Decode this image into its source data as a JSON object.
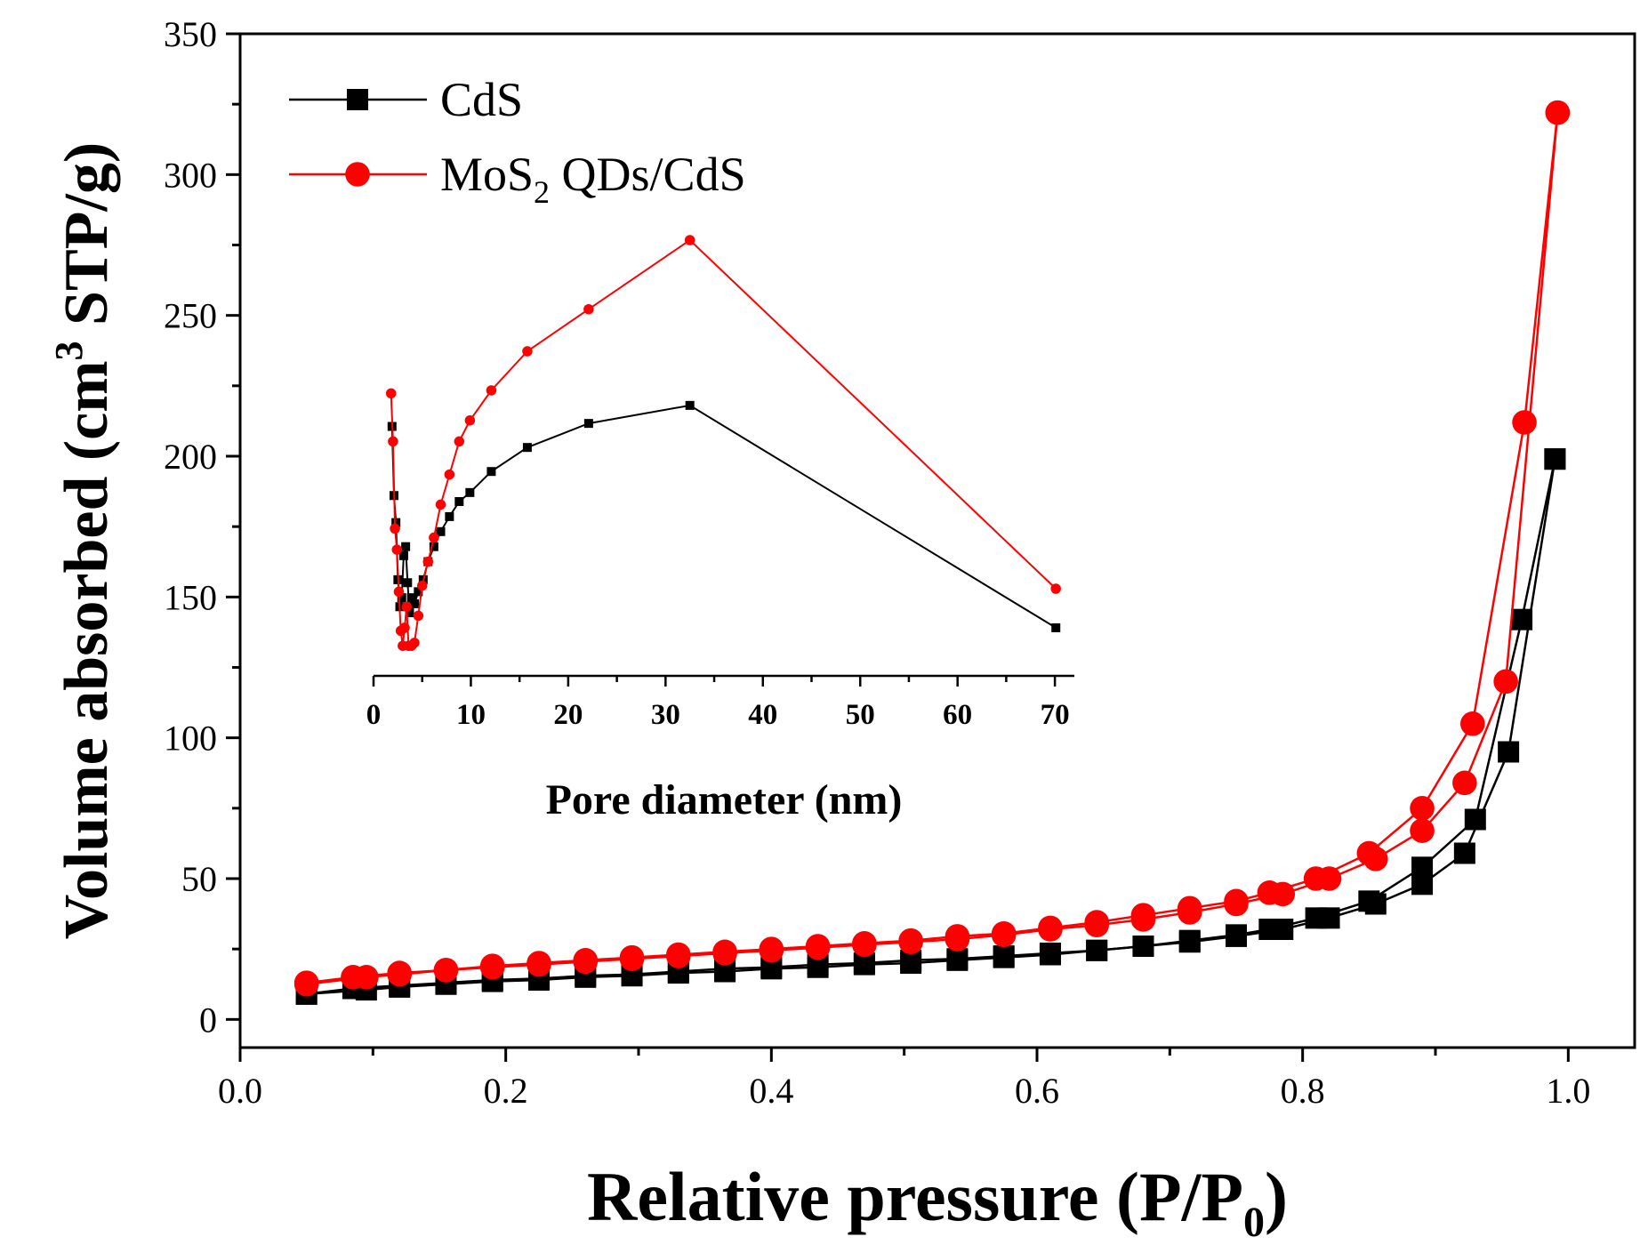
{
  "chart_data": [
    {
      "type": "scatter",
      "role": "main",
      "xlabel": "Relative pressure (P/P",
      "xlabel_subscript": "0",
      "xlabel_close": ")",
      "ylabel": "Volume absorbed (cm",
      "ylabel_superscript": "3",
      "ylabel_rest": " STP/g)",
      "xlim": [
        0.0,
        1.05
      ],
      "ylim": [
        -10,
        350
      ],
      "xticks": [
        0.0,
        0.2,
        0.4,
        0.6,
        0.8,
        1.0
      ],
      "xtick_labels": [
        "0.0",
        "0.2",
        "0.4",
        "0.6",
        "0.8",
        "1.0"
      ],
      "yticks": [
        0,
        50,
        100,
        150,
        200,
        250,
        300,
        350
      ],
      "ytick_labels": [
        "0",
        "50",
        "100",
        "150",
        "200",
        "250",
        "300",
        "350"
      ],
      "legend_position": "top-left",
      "series": [
        {
          "name": "CdS",
          "label_main": "CdS",
          "label_sub": "",
          "label_rest": "",
          "color": "#000000",
          "marker": "square",
          "adsorption": {
            "x": [
              0.05,
              0.085,
              0.12,
              0.155,
              0.19,
              0.225,
              0.26,
              0.295,
              0.33,
              0.365,
              0.4,
              0.435,
              0.47,
              0.505,
              0.54,
              0.575,
              0.61,
              0.645,
              0.68,
              0.715,
              0.75,
              0.775,
              0.81,
              0.85,
              0.89,
              0.93,
              0.965,
              0.99
            ],
            "y": [
              9,
              11,
              12,
              13,
              14,
              14.5,
              15.5,
              16,
              17,
              18,
              18.5,
              19.5,
              20,
              21,
              21.5,
              22.5,
              23.5,
              24.5,
              26,
              28,
              30,
              32,
              36,
              42,
              54,
              71,
              142,
              199
            ]
          },
          "desorption": {
            "x": [
              0.99,
              0.955,
              0.922,
              0.89,
              0.855,
              0.82,
              0.785,
              0.75,
              0.715,
              0.68,
              0.645,
              0.61,
              0.575,
              0.54,
              0.505,
              0.47,
              0.435,
              0.4,
              0.365,
              0.33,
              0.295,
              0.26,
              0.225,
              0.19,
              0.155,
              0.12,
              0.095,
              0.05
            ],
            "y": [
              199,
              95,
              59,
              48,
              41,
              36,
              32,
              29.5,
              27.5,
              26,
              24.5,
              23,
              22,
              21,
              20,
              19.5,
              18.5,
              18,
              17,
              16.5,
              15.5,
              15,
              14,
              13.5,
              12.5,
              11.5,
              10.5,
              9
            ]
          }
        },
        {
          "name": "MoS2 QDs/CdS",
          "label_main": "MoS",
          "label_sub": "2",
          "label_rest": " QDs/CdS",
          "color": "#ff0000",
          "marker": "circle",
          "adsorption": {
            "x": [
              0.05,
              0.085,
              0.12,
              0.155,
              0.19,
              0.225,
              0.26,
              0.295,
              0.33,
              0.365,
              0.4,
              0.435,
              0.47,
              0.505,
              0.54,
              0.575,
              0.61,
              0.645,
              0.68,
              0.715,
              0.75,
              0.775,
              0.81,
              0.85,
              0.89,
              0.928,
              0.967,
              0.992
            ],
            "y": [
              13,
              15,
              16.5,
              17.5,
              19,
              20,
              21,
              22,
              23,
              24,
              25,
              26,
              27,
              28,
              29.5,
              30.5,
              32.5,
              34.5,
              37,
              39.5,
              42,
              45,
              50,
              59,
              75,
              105,
              212,
              322
            ]
          },
          "desorption": {
            "x": [
              0.992,
              0.953,
              0.922,
              0.89,
              0.855,
              0.82,
              0.785,
              0.75,
              0.715,
              0.68,
              0.645,
              0.61,
              0.575,
              0.54,
              0.505,
              0.47,
              0.435,
              0.4,
              0.365,
              0.33,
              0.295,
              0.26,
              0.225,
              0.19,
              0.155,
              0.12,
              0.095,
              0.05
            ],
            "y": [
              322,
              120,
              84,
              67,
              57,
              50,
              44.5,
              41,
              38,
              35.5,
              33.5,
              32,
              30,
              28.5,
              27.5,
              26.5,
              25.5,
              24.5,
              23.5,
              22.5,
              21.5,
              20.5,
              19.5,
              18.5,
              17.5,
              16,
              15,
              12.5
            ]
          }
        }
      ]
    },
    {
      "type": "line",
      "role": "inset",
      "xlabel": "Pore diameter (nm)",
      "xlim": [
        0,
        72
      ],
      "ylim": [
        125,
        270
      ],
      "xticks": [
        0,
        10,
        20,
        30,
        40,
        50,
        60,
        70
      ],
      "xtick_labels": [
        "0",
        "10",
        "20",
        "30",
        "40",
        "50",
        "60",
        "70"
      ],
      "series": [
        {
          "name": "CdS",
          "color": "#000000",
          "marker": "square",
          "x": [
            1.9,
            2.1,
            2.3,
            2.5,
            2.7,
            2.9,
            3.1,
            3.3,
            3.5,
            3.7,
            3.9,
            4.2,
            4.6,
            5.1,
            5.6,
            6.2,
            6.9,
            7.8,
            8.8,
            9.9,
            12.1,
            15.8,
            22.1,
            32.5,
            70.1
          ],
          "y": [
            208,
            185,
            176,
            157,
            148,
            151,
            165,
            168,
            156,
            146,
            151,
            149,
            153,
            157,
            163,
            168,
            173,
            178,
            183,
            186,
            193,
            201,
            209,
            215,
            141
          ]
        },
        {
          "name": "MoS2 QDs/CdS",
          "color": "#ff0000",
          "marker": "circle",
          "x": [
            1.8,
            2.0,
            2.2,
            2.4,
            2.6,
            2.8,
            3.0,
            3.2,
            3.4,
            3.6,
            3.9,
            4.2,
            4.6,
            5.0,
            5.6,
            6.2,
            6.9,
            7.8,
            8.8,
            9.9,
            12.1,
            15.8,
            22.1,
            32.5,
            70.1
          ],
          "y": [
            219,
            203,
            174,
            167,
            153,
            140,
            135,
            141,
            148,
            135,
            135,
            136,
            145,
            155,
            163,
            171,
            182,
            192,
            203,
            210,
            220,
            233,
            247,
            270,
            154
          ]
        }
      ]
    }
  ]
}
